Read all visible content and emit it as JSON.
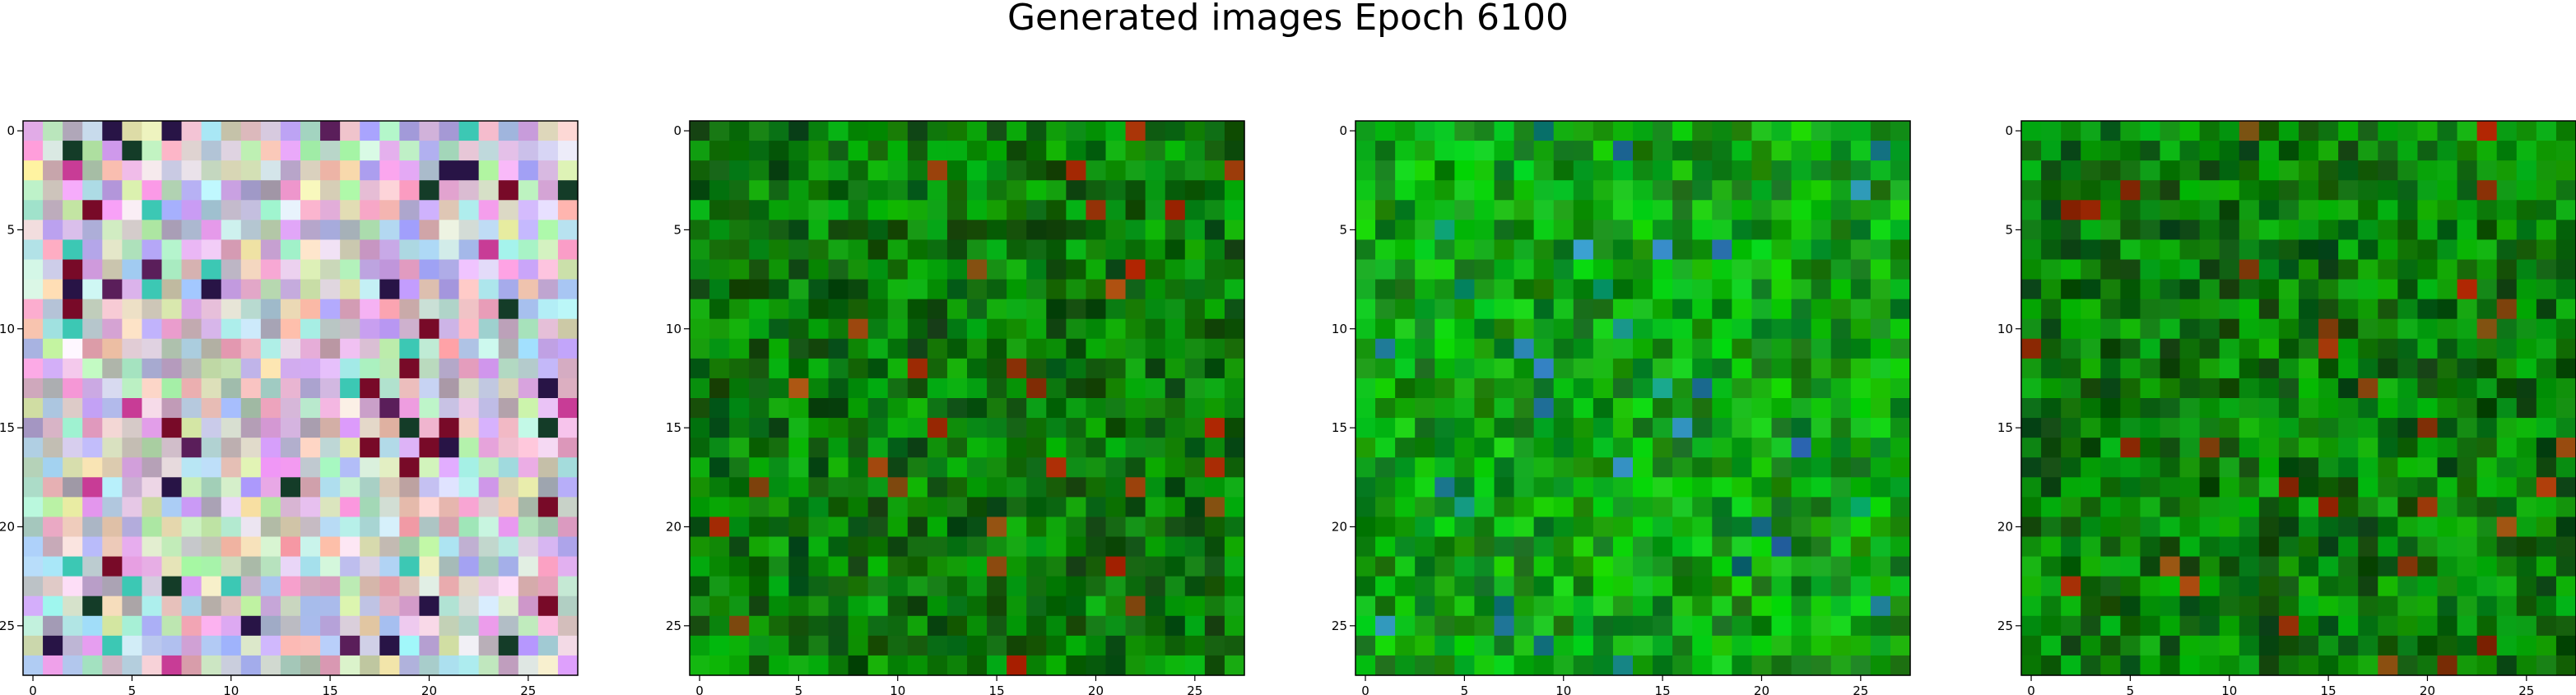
{
  "chart_data": {
    "type": "heatmap",
    "title": "Generated images Epoch 6100",
    "panels": [
      {
        "name": "",
        "palette": "pastel",
        "grid_size": 28,
        "xlim": [
          0,
          27
        ],
        "ylim": [
          27,
          0
        ],
        "xticks": [
          0,
          5,
          10,
          15,
          20,
          25
        ],
        "yticks": [
          0,
          5,
          10,
          15,
          20,
          25
        ]
      },
      {
        "name": "",
        "palette": "green",
        "grid_size": 28,
        "xlim": [
          0,
          27
        ],
        "ylim": [
          27,
          0
        ],
        "xticks": [
          0,
          5,
          10,
          15,
          20,
          25
        ],
        "yticks": [
          0,
          5,
          10,
          15,
          20,
          25
        ]
      },
      {
        "name": "",
        "palette": "green-bright",
        "grid_size": 28,
        "xlim": [
          0,
          27
        ],
        "ylim": [
          27,
          0
        ],
        "xticks": [
          0,
          5,
          10,
          15,
          20,
          25
        ],
        "yticks": [
          0,
          5,
          10,
          15,
          20,
          25
        ]
      },
      {
        "name": "",
        "palette": "green",
        "grid_size": 28,
        "xlim": [
          0,
          27
        ],
        "ylim": [
          27,
          0
        ],
        "xticks": [
          0,
          5,
          10,
          15,
          20,
          25
        ],
        "yticks": [
          0,
          5,
          10,
          15,
          20,
          25
        ]
      }
    ]
  }
}
